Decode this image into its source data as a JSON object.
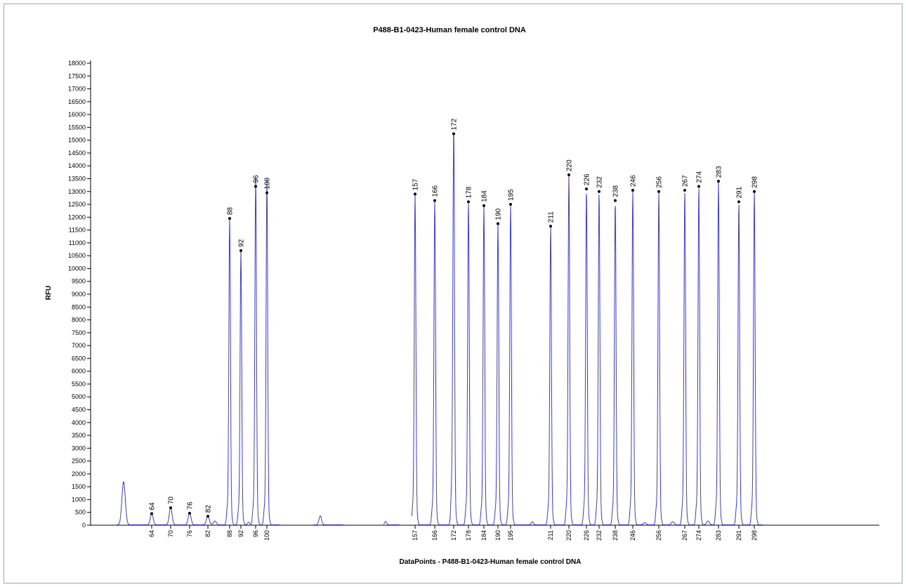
{
  "chart_data": {
    "type": "line",
    "title": "P488-B1-0423-Human female control DNA",
    "xlabel": "DataPoints - P488-B1-0423-Human female control DNA",
    "ylabel": "RFU",
    "ylim": [
      0,
      18000
    ],
    "yticks": [
      0,
      500,
      1000,
      1500,
      2000,
      2500,
      3000,
      3500,
      4000,
      4500,
      5000,
      5500,
      6000,
      6500,
      7000,
      7500,
      8000,
      8500,
      9000,
      9500,
      10000,
      10500,
      11000,
      11500,
      12000,
      12500,
      13000,
      13500,
      14000,
      14500,
      15000,
      15500,
      16000,
      16500,
      17000,
      17500,
      18000
    ],
    "grid": false,
    "line_color": "#3b3bf0",
    "marker_color": "#000000",
    "peaks": [
      {
        "label": "64",
        "height": 450
      },
      {
        "label": "70",
        "height": 680
      },
      {
        "label": "76",
        "height": 470
      },
      {
        "label": "82",
        "height": 350
      },
      {
        "label": "88",
        "height": 11950
      },
      {
        "label": "92",
        "height": 10700
      },
      {
        "label": "96",
        "height": 13200
      },
      {
        "label": "100",
        "height": 12950
      },
      {
        "label": "157",
        "height": 12900
      },
      {
        "label": "166",
        "height": 12650
      },
      {
        "label": "172",
        "height": 15250
      },
      {
        "label": "178",
        "height": 12600
      },
      {
        "label": "184",
        "height": 12450
      },
      {
        "label": "190",
        "height": 11750
      },
      {
        "label": "195",
        "height": 12500
      },
      {
        "label": "211",
        "height": 11650
      },
      {
        "label": "220",
        "height": 13650
      },
      {
        "label": "226",
        "height": 13100
      },
      {
        "label": "232",
        "height": 13000
      },
      {
        "label": "238",
        "height": 12650
      },
      {
        "label": "246",
        "height": 13050
      },
      {
        "label": "256",
        "height": 13000
      },
      {
        "label": "267",
        "height": 13050
      },
      {
        "label": "274",
        "height": 13200
      },
      {
        "label": "283",
        "height": 13400
      },
      {
        "label": "291",
        "height": 12600
      },
      {
        "label": "298",
        "height": 13000
      }
    ]
  }
}
